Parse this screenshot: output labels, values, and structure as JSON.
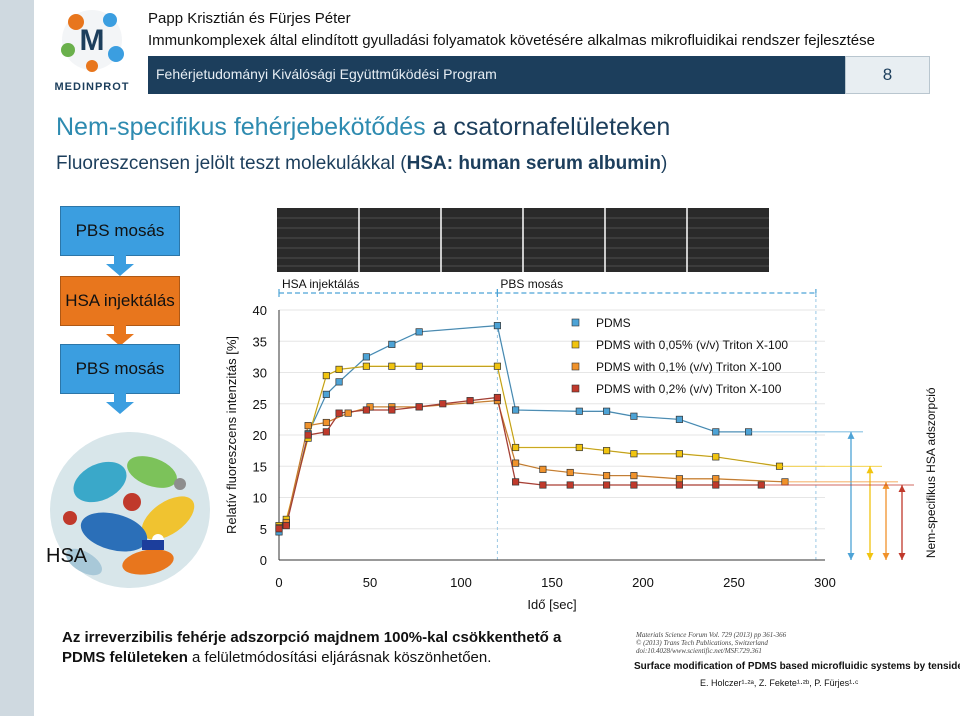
{
  "header": {
    "author": "Papp Krisztián és Fürjes Péter",
    "project_title": "Immunkomplexek által elindított gyulladási folyamatok követésére alkalmas mikrofluidikai rendszer fejlesztése",
    "program": "Fehérjetudományi Kiválósági Együttműködési Program",
    "page_number": "8",
    "logo_letter": "M",
    "logo_text": "MEDINPROT"
  },
  "slide": {
    "title_highlight": "Nem-specifikus fehérjebekötődés",
    "title_rest": " a csatornafelületeken",
    "subtitle_pre": "Fluoreszcensen jelölt teszt molekulákkal (",
    "subtitle_bold": "HSA: human serum albumin",
    "subtitle_post": ")"
  },
  "flow": {
    "steps": [
      "PBS mosás",
      "HSA injektálás",
      "PBS mosás"
    ],
    "colors": [
      "#3b9ee0",
      "#e8761d",
      "#3b9ee0"
    ]
  },
  "hsa_label": "HSA",
  "chart_data": {
    "type": "line",
    "ylabel": "Relatív fluoreszcens intenzitás [%]",
    "xlabel": "Idő [sec]",
    "xlim": [
      0,
      300
    ],
    "ylim": [
      0,
      40
    ],
    "xticks": [
      0,
      50,
      100,
      150,
      200,
      250,
      300
    ],
    "yticks": [
      0,
      5,
      10,
      15,
      20,
      25,
      30,
      35,
      40
    ],
    "phase_labels": [
      "HSA injektálás",
      "PBS mosás"
    ],
    "phase_bounds": [
      [
        0,
        120
      ],
      [
        120,
        295
      ]
    ],
    "right_label": "Nem-specifikus HSA adszorpció",
    "legend_position": "top-right",
    "series": [
      {
        "name": "PDMS",
        "color": "#4da3d6",
        "x": [
          0,
          4,
          16,
          26,
          33,
          48,
          62,
          77,
          120,
          130,
          165,
          180,
          195,
          220,
          240,
          258
        ],
        "y": [
          4.5,
          5.8,
          20.2,
          26.5,
          28.5,
          32.5,
          34.5,
          36.5,
          37.5,
          24.0,
          23.8,
          23.8,
          23.0,
          22.5,
          20.5,
          20.5
        ]
      },
      {
        "name": "PDMS with 0,05% (v/v) Triton X-100",
        "color": "#f1c40f",
        "x": [
          0,
          4,
          16,
          26,
          33,
          48,
          62,
          77,
          120,
          130,
          165,
          180,
          195,
          220,
          240,
          275
        ],
        "y": [
          5.5,
          6.5,
          19.5,
          29.5,
          30.5,
          31.0,
          31.0,
          31.0,
          31.0,
          18.0,
          18.0,
          17.5,
          17.0,
          17.0,
          16.5,
          15.0
        ]
      },
      {
        "name": "PDMS with 0,1% (v/v) Triton X-100",
        "color": "#f0922b",
        "x": [
          0,
          4,
          16,
          26,
          38,
          50,
          62,
          77,
          120,
          130,
          145,
          160,
          180,
          195,
          220,
          240,
          278
        ],
        "y": [
          5.2,
          6.0,
          21.5,
          22.0,
          23.5,
          24.5,
          24.5,
          24.5,
          25.5,
          15.5,
          14.5,
          14.0,
          13.5,
          13.5,
          13.0,
          13.0,
          12.5
        ]
      },
      {
        "name": "PDMS with 0,2% (v/v) Triton X-100",
        "color": "#c0392b",
        "x": [
          0,
          4,
          16,
          26,
          33,
          48,
          62,
          77,
          90,
          105,
          120,
          130,
          145,
          160,
          180,
          195,
          220,
          240,
          265
        ],
        "y": [
          5.0,
          5.5,
          20.0,
          20.5,
          23.5,
          24.0,
          24.0,
          24.5,
          25.0,
          25.5,
          26.0,
          12.5,
          12.0,
          12.0,
          12.0,
          12.0,
          12.0,
          12.0,
          12.0
        ]
      }
    ]
  },
  "caption": {
    "line1": "Az irreverzibilis fehérje adszorpció majdnem 100%-kal csökkenthető a",
    "line2_bold": "PDMS felületeken",
    "line2_rest": " a felületmódosítási eljárásnak köszönhetően."
  },
  "reference": {
    "journal_1": "Materials Science Forum Vol. 729 (2013) pp 361-366",
    "journal_2": "© (2013) Trans Tech Publications, Switzerland",
    "journal_3": "doi:10.4028/www.scientific.net/MSF.729.361",
    "title": "Surface modification of PDMS based microfluidic systems by tensides",
    "authors": "E. Holczer¹·²ᵃ, Z. Fekete¹·²ᵇ, P. Fürjes¹·ᶜ"
  }
}
